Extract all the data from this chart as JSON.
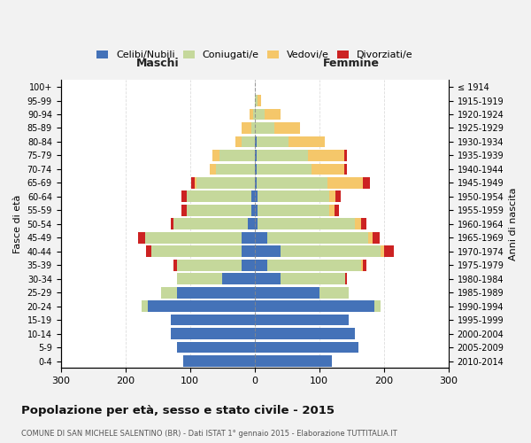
{
  "age_groups": [
    "0-4",
    "5-9",
    "10-14",
    "15-19",
    "20-24",
    "25-29",
    "30-34",
    "35-39",
    "40-44",
    "45-49",
    "50-54",
    "55-59",
    "60-64",
    "65-69",
    "70-74",
    "75-79",
    "80-84",
    "85-89",
    "90-94",
    "95-99",
    "100+"
  ],
  "birth_years": [
    "2010-2014",
    "2005-2009",
    "2000-2004",
    "1995-1999",
    "1990-1994",
    "1985-1989",
    "1980-1984",
    "1975-1979",
    "1970-1974",
    "1965-1969",
    "1960-1964",
    "1955-1959",
    "1950-1954",
    "1945-1949",
    "1940-1944",
    "1935-1939",
    "1930-1934",
    "1925-1929",
    "1920-1924",
    "1915-1919",
    "≤ 1914"
  ],
  "male": {
    "celibe": [
      110,
      120,
      130,
      130,
      165,
      120,
      50,
      20,
      20,
      20,
      10,
      5,
      5,
      0,
      0,
      0,
      0,
      0,
      0,
      0,
      0
    ],
    "coniugato": [
      0,
      0,
      0,
      0,
      10,
      25,
      70,
      100,
      140,
      150,
      115,
      100,
      100,
      90,
      60,
      55,
      20,
      5,
      3,
      0,
      0
    ],
    "vedovo": [
      0,
      0,
      0,
      0,
      0,
      0,
      0,
      0,
      0,
      0,
      0,
      0,
      0,
      3,
      10,
      10,
      10,
      15,
      5,
      0,
      0
    ],
    "divorziato": [
      0,
      0,
      0,
      0,
      0,
      0,
      0,
      5,
      8,
      10,
      5,
      8,
      8,
      5,
      0,
      0,
      0,
      0,
      0,
      0,
      0
    ]
  },
  "female": {
    "nubile": [
      120,
      160,
      155,
      145,
      185,
      100,
      40,
      20,
      40,
      20,
      5,
      5,
      5,
      3,
      3,
      3,
      3,
      0,
      0,
      0,
      0
    ],
    "coniugata": [
      0,
      0,
      0,
      0,
      10,
      45,
      100,
      145,
      155,
      155,
      150,
      110,
      110,
      110,
      85,
      80,
      50,
      30,
      15,
      5,
      0
    ],
    "vedova": [
      0,
      0,
      0,
      0,
      0,
      0,
      0,
      3,
      5,
      8,
      10,
      8,
      10,
      55,
      50,
      55,
      55,
      40,
      25,
      5,
      0
    ],
    "divorziata": [
      0,
      0,
      0,
      0,
      0,
      0,
      3,
      5,
      15,
      10,
      8,
      8,
      8,
      10,
      5,
      5,
      0,
      0,
      0,
      0,
      0
    ]
  },
  "colors": {
    "celibe": "#4472b8",
    "coniugato": "#c5d89b",
    "vedovo": "#f5c76a",
    "divorziato": "#cc2222"
  },
  "legend_labels": [
    "Celibi/Nubili",
    "Coniugati/e",
    "Vedovi/e",
    "Divorziati/e"
  ],
  "xlim": 300,
  "title": "Popolazione per età, sesso e stato civile - 2015",
  "subtitle": "COMUNE DI SAN MICHELE SALENTINO (BR) - Dati ISTAT 1° gennaio 2015 - Elaborazione TUTTITALIA.IT",
  "xlabel_left": "Maschi",
  "xlabel_right": "Femmine",
  "ylabel": "Fasce di età",
  "ylabel_right": "Anni di nascita",
  "bg_color": "#f2f2f2",
  "plot_bg_color": "#ffffff"
}
